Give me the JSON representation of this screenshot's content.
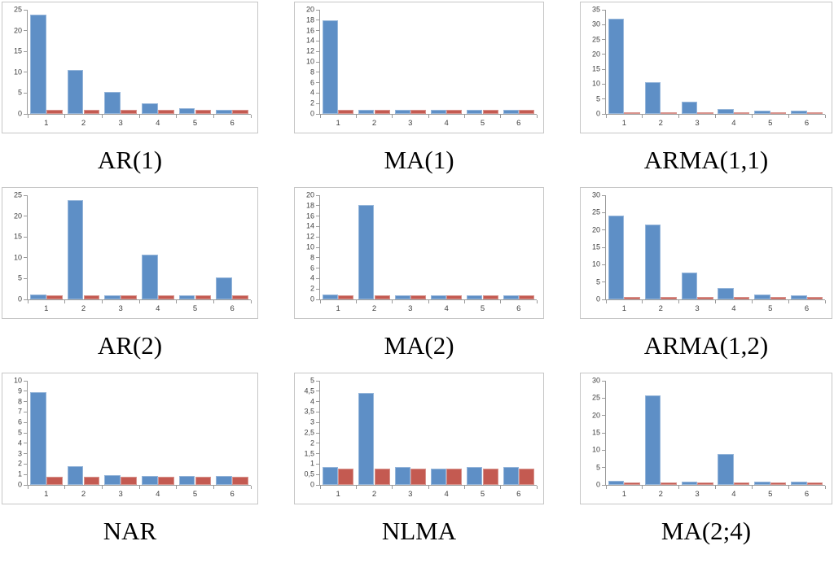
{
  "page": {
    "background": "#ffffff"
  },
  "colors": {
    "series_blue": "#5e8fc6",
    "series_red": "#c45a51",
    "axis": "#9a9a9a",
    "tick_label": "#3f3f3f",
    "panel_border": "#c6c6c6"
  },
  "chart_data": [
    {
      "type": "bar",
      "title": "AR(1)",
      "categories": [
        "1",
        "2",
        "3",
        "4",
        "5",
        "6"
      ],
      "series": [
        {
          "name": "blue-series",
          "values": [
            23.8,
            10.6,
            5.2,
            2.6,
            1.4,
            1.0
          ]
        },
        {
          "name": "red-series",
          "values": [
            0.9,
            0.9,
            0.9,
            0.9,
            0.9,
            0.9
          ]
        }
      ],
      "ylim": [
        0,
        25
      ],
      "yticks": [
        "0",
        "5",
        "10",
        "15",
        "20",
        "25"
      ],
      "grid": false,
      "legend": false
    },
    {
      "type": "bar",
      "title": "MA(1)",
      "categories": [
        "1",
        "2",
        "3",
        "4",
        "5",
        "6"
      ],
      "series": [
        {
          "name": "blue-series",
          "values": [
            18.0,
            0.8,
            0.8,
            0.8,
            0.8,
            0.8
          ]
        },
        {
          "name": "red-series",
          "values": [
            0.8,
            0.8,
            0.8,
            0.8,
            0.8,
            0.8
          ]
        }
      ],
      "ylim": [
        0,
        20
      ],
      "yticks": [
        "0",
        "2",
        "4",
        "6",
        "8",
        "10",
        "12",
        "14",
        "16",
        "18",
        "20"
      ],
      "grid": false,
      "legend": false
    },
    {
      "type": "bar",
      "title": "ARMA(1,1)",
      "categories": [
        "1",
        "2",
        "3",
        "4",
        "5",
        "6"
      ],
      "series": [
        {
          "name": "blue-series",
          "values": [
            32.0,
            10.6,
            4.0,
            1.6,
            1.2,
            1.0
          ]
        },
        {
          "name": "red-series",
          "values": [
            0.6,
            0.6,
            0.6,
            0.6,
            0.6,
            0.6
          ]
        }
      ],
      "ylim": [
        0,
        35
      ],
      "yticks": [
        "0",
        "5",
        "10",
        "15",
        "20",
        "25",
        "30",
        "35"
      ],
      "grid": false,
      "legend": false
    },
    {
      "type": "bar",
      "title": "AR(2)",
      "categories": [
        "1",
        "2",
        "3",
        "4",
        "5",
        "6"
      ],
      "series": [
        {
          "name": "blue-series",
          "values": [
            1.1,
            23.8,
            0.9,
            10.7,
            0.9,
            5.2
          ]
        },
        {
          "name": "red-series",
          "values": [
            0.9,
            0.9,
            0.9,
            0.9,
            0.9,
            0.9
          ]
        }
      ],
      "ylim": [
        0,
        25
      ],
      "yticks": [
        "0",
        "5",
        "10",
        "15",
        "20",
        "25"
      ],
      "grid": false,
      "legend": false
    },
    {
      "type": "bar",
      "title": "MA(2)",
      "categories": [
        "1",
        "2",
        "3",
        "4",
        "5",
        "6"
      ],
      "series": [
        {
          "name": "blue-series",
          "values": [
            1.0,
            18.1,
            0.8,
            0.8,
            0.8,
            0.8
          ]
        },
        {
          "name": "red-series",
          "values": [
            0.8,
            0.8,
            0.8,
            0.8,
            0.8,
            0.8
          ]
        }
      ],
      "ylim": [
        0,
        20
      ],
      "yticks": [
        "0",
        "2",
        "4",
        "6",
        "8",
        "10",
        "12",
        "14",
        "16",
        "18",
        "20"
      ],
      "grid": false,
      "legend": false
    },
    {
      "type": "bar",
      "title": "ARMA(1,2)",
      "categories": [
        "1",
        "2",
        "3",
        "4",
        "5",
        "6"
      ],
      "series": [
        {
          "name": "blue-series",
          "values": [
            24.2,
            21.5,
            7.8,
            3.2,
            1.4,
            1.1
          ]
        },
        {
          "name": "red-series",
          "values": [
            0.8,
            0.8,
            0.8,
            0.8,
            0.8,
            0.8
          ]
        }
      ],
      "ylim": [
        0,
        30
      ],
      "yticks": [
        "0",
        "5",
        "10",
        "15",
        "20",
        "25",
        "30"
      ],
      "grid": false,
      "legend": false
    },
    {
      "type": "bar",
      "title": "NAR",
      "categories": [
        "1",
        "2",
        "3",
        "4",
        "5",
        "6"
      ],
      "series": [
        {
          "name": "blue-series",
          "values": [
            8.9,
            1.8,
            0.9,
            0.85,
            0.85,
            0.85
          ]
        },
        {
          "name": "red-series",
          "values": [
            0.8,
            0.8,
            0.8,
            0.8,
            0.8,
            0.8
          ]
        }
      ],
      "ylim": [
        0,
        10
      ],
      "yticks": [
        "0",
        "1",
        "2",
        "3",
        "4",
        "5",
        "6",
        "7",
        "8",
        "9",
        "10"
      ],
      "grid": false,
      "legend": false
    },
    {
      "type": "bar",
      "title": "NLMA",
      "categories": [
        "1",
        "2",
        "3",
        "4",
        "5",
        "6"
      ],
      "series": [
        {
          "name": "blue-series",
          "values": [
            0.85,
            4.4,
            0.85,
            0.8,
            0.87,
            0.85
          ]
        },
        {
          "name": "red-series",
          "values": [
            0.8,
            0.8,
            0.8,
            0.8,
            0.8,
            0.8
          ]
        }
      ],
      "ylim": [
        0,
        5
      ],
      "yticks": [
        "0",
        "0,5",
        "1",
        "1,5",
        "2",
        "2,5",
        "3",
        "3,5",
        "4",
        "4,5",
        "5"
      ],
      "grid": false,
      "legend": false
    },
    {
      "type": "bar",
      "title": "MA(2;4)",
      "categories": [
        "1",
        "2",
        "3",
        "4",
        "5",
        "6"
      ],
      "series": [
        {
          "name": "blue-series",
          "values": [
            1.1,
            25.9,
            1.0,
            8.8,
            1.0,
            1.0
          ]
        },
        {
          "name": "red-series",
          "values": [
            0.7,
            0.7,
            0.7,
            0.7,
            0.7,
            0.7
          ]
        }
      ],
      "ylim": [
        0,
        30
      ],
      "yticks": [
        "0",
        "5",
        "10",
        "15",
        "20",
        "25",
        "30"
      ],
      "grid": false,
      "legend": false
    }
  ]
}
